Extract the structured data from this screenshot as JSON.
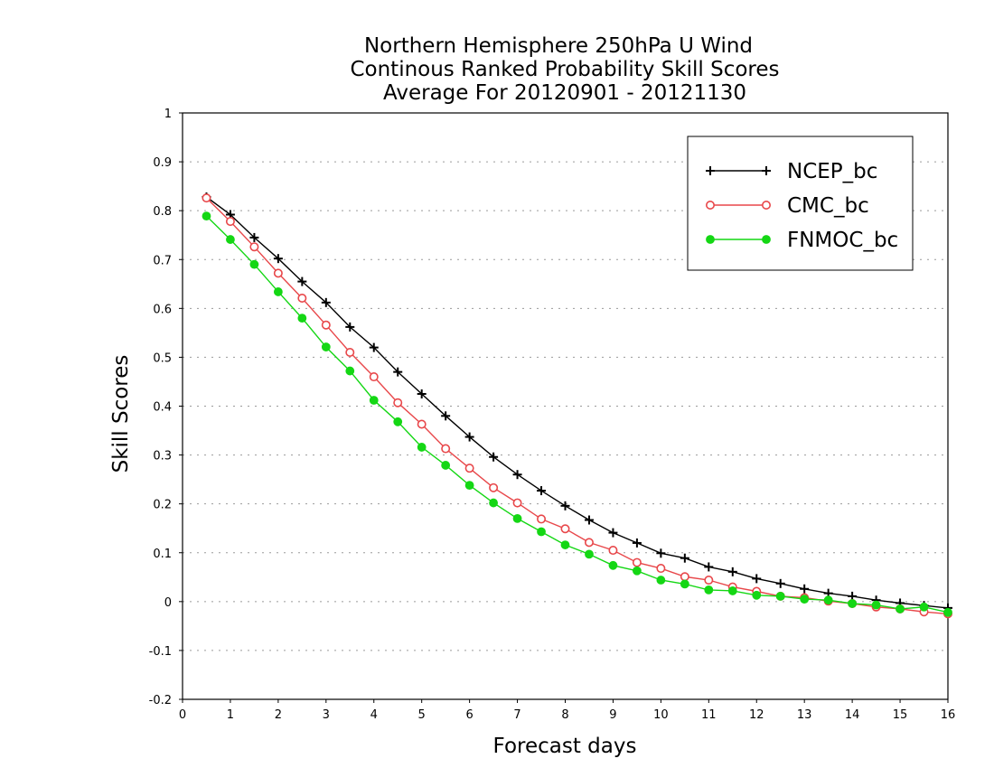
{
  "chart_data": {
    "type": "line",
    "title": [
      "Northern Hemisphere 250hPa U Wind",
      "Continous Ranked Probability Skill Scores",
      "Average For 20120901 - 20121130"
    ],
    "xlabel": "Forecast days",
    "ylabel": "Skill Scores",
    "xlim": [
      0,
      16
    ],
    "ylim": [
      -0.2,
      1
    ],
    "x_ticks": [
      0,
      1,
      2,
      3,
      4,
      5,
      6,
      7,
      8,
      9,
      10,
      11,
      12,
      13,
      14,
      15,
      16
    ],
    "x_tick_labels": [
      "0",
      "1",
      "2",
      "3",
      "4",
      "5",
      "6",
      "7",
      "8",
      "9",
      "10",
      "11",
      "12",
      "13",
      "14",
      "15",
      "16"
    ],
    "y_ticks": [
      -0.2,
      -0.1,
      0,
      0.1,
      0.2,
      0.3,
      0.4,
      0.5,
      0.6,
      0.7,
      0.8,
      0.9,
      1
    ],
    "y_tick_labels": [
      "-0.2",
      "-0.1",
      "0",
      "0.1",
      "0.2",
      "0.3",
      "0.4",
      "0.5",
      "0.6",
      "0.7",
      "0.8",
      "0.9",
      "1"
    ],
    "grid": true,
    "legend_position": "top-right",
    "x": [
      0.5,
      1,
      1.5,
      2,
      2.5,
      3,
      3.5,
      4,
      4.5,
      5,
      5.5,
      6,
      6.5,
      7,
      7.5,
      8,
      8.5,
      9,
      9.5,
      10,
      10.5,
      11,
      11.5,
      12,
      12.5,
      13,
      13.5,
      14,
      14.5,
      15,
      15.5,
      16
    ],
    "series": [
      {
        "name": "NCEP_bc",
        "color": "#000000",
        "marker": "plus",
        "values": [
          0.828,
          0.792,
          0.745,
          0.702,
          0.655,
          0.612,
          0.562,
          0.52,
          0.47,
          0.425,
          0.38,
          0.337,
          0.296,
          0.26,
          0.227,
          0.196,
          0.167,
          0.141,
          0.12,
          0.099,
          0.089,
          0.071,
          0.061,
          0.047,
          0.037,
          0.026,
          0.017,
          0.011,
          0.003,
          -0.003,
          -0.008,
          -0.013
        ]
      },
      {
        "name": "CMC_bc",
        "color": "#e8474a",
        "marker": "open-circle",
        "values": [
          0.826,
          0.778,
          0.726,
          0.672,
          0.621,
          0.566,
          0.51,
          0.46,
          0.407,
          0.363,
          0.313,
          0.273,
          0.233,
          0.202,
          0.169,
          0.149,
          0.121,
          0.105,
          0.08,
          0.068,
          0.051,
          0.044,
          0.03,
          0.021,
          0.011,
          0.008,
          0.001,
          -0.004,
          -0.011,
          -0.015,
          -0.021,
          -0.025
        ]
      },
      {
        "name": "FNMOC_bc",
        "color": "#14d714",
        "marker": "filled-circle",
        "values": [
          0.789,
          0.741,
          0.69,
          0.634,
          0.58,
          0.521,
          0.472,
          0.412,
          0.368,
          0.316,
          0.279,
          0.238,
          0.202,
          0.17,
          0.143,
          0.116,
          0.097,
          0.074,
          0.063,
          0.044,
          0.036,
          0.024,
          0.022,
          0.013,
          0.011,
          0.005,
          0.003,
          -0.004,
          -0.007,
          -0.015,
          -0.011,
          -0.022
        ]
      }
    ]
  }
}
